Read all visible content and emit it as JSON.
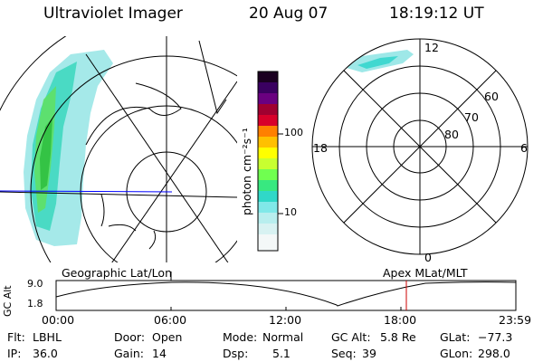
{
  "header": {
    "title": "Ultraviolet Imager",
    "date": "20 Aug 07",
    "time": "18:19:12 UT"
  },
  "colorbar": {
    "unit_label": "photon cm⁻²s⁻¹",
    "scale": "log",
    "ticks": [
      "100",
      "10"
    ],
    "colors": [
      "#1a0020",
      "#3a0060",
      "#6a0080",
      "#a00030",
      "#d8002a",
      "#ff2a00",
      "#ff8000",
      "#ffc000",
      "#ffff00",
      "#c8ff30",
      "#70ff50",
      "#38e880",
      "#30d8c8",
      "#80e8e8",
      "#d0f0f0",
      "#ffffff"
    ]
  },
  "polar_plot": {
    "mlt_labels": {
      "top": "12",
      "left": "18",
      "right": "6",
      "bottom": "0"
    },
    "lat_labels": [
      "60",
      "70",
      "80"
    ]
  },
  "timeline": {
    "y_axis_label": "GC Alt",
    "y_ticks": [
      "9.0",
      "1.8"
    ],
    "left_caption": "Geographic Lat/Lon",
    "right_caption": "Apex MLat/MLT",
    "x_ticks": [
      "00:00",
      "06:00",
      "12:00",
      "18:00",
      "23:59"
    ],
    "current_time_color": "#cc0000"
  },
  "info": {
    "flt_label": "Flt:",
    "flt_value": "LBHL",
    "ip_label": "IP:",
    "ip_value": "36.0",
    "door_label": "Door:",
    "door_value": "Open",
    "gain_label": "Gain:",
    "gain_value": "14",
    "mode_label": "Mode:",
    "mode_value": "Normal",
    "dsp_label": "Dsp:",
    "dsp_value": "5.1",
    "gcalt_label": "GC Alt:",
    "gcalt_value": "5.8 Re",
    "seq_label": "Seq:",
    "seq_value": "39",
    "glat_label": "GLat:",
    "glat_value": "−77.3",
    "glon_label": "GLon:",
    "glon_value": "298.0"
  }
}
